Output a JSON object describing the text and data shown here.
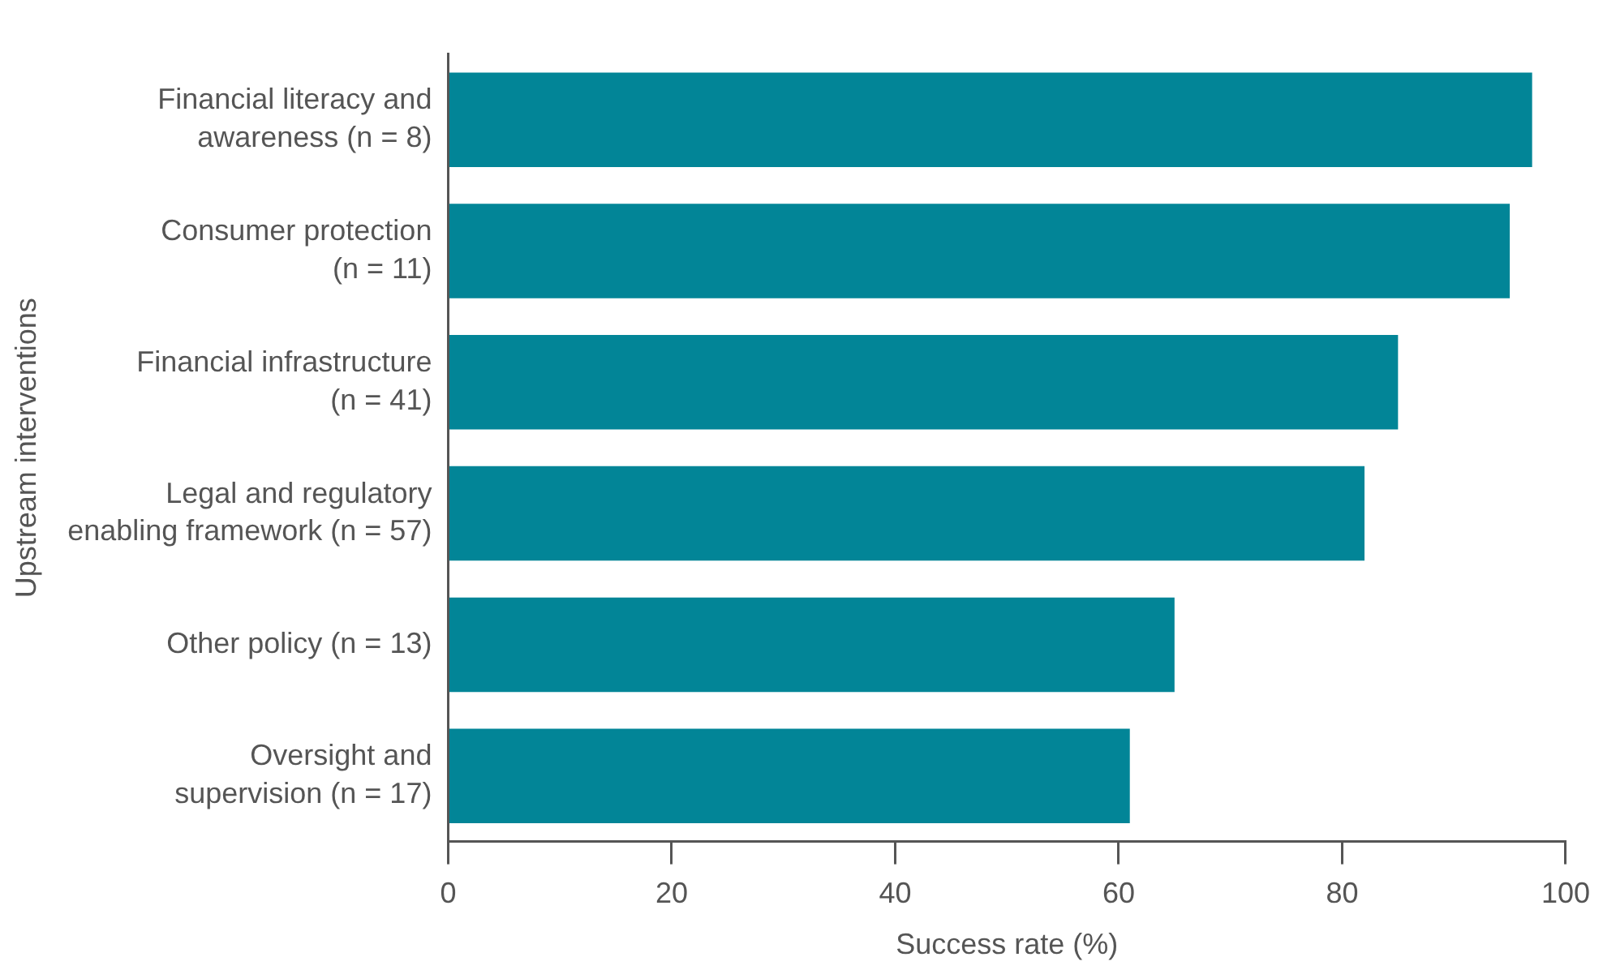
{
  "chart_data": {
    "type": "bar",
    "orientation": "horizontal",
    "xlabel": "Success rate (%)",
    "ylabel": "Upstream interventions",
    "categories": [
      "Financial literacy and\nawareness (n = 8)",
      "Consumer protection\n(n = 11)",
      "Financial infrastructure\n(n = 41)",
      "Legal and regulatory\nenabling framework (n = 57)",
      "Other policy (n = 13)",
      "Oversight and\nsupervision (n = 17)"
    ],
    "values": [
      97,
      95,
      85,
      82,
      65,
      61
    ],
    "color": "#028597",
    "xlim": [
      0,
      100
    ],
    "xticks": [
      0,
      20,
      40,
      60,
      80,
      100
    ],
    "grid": false,
    "legend": false
  }
}
